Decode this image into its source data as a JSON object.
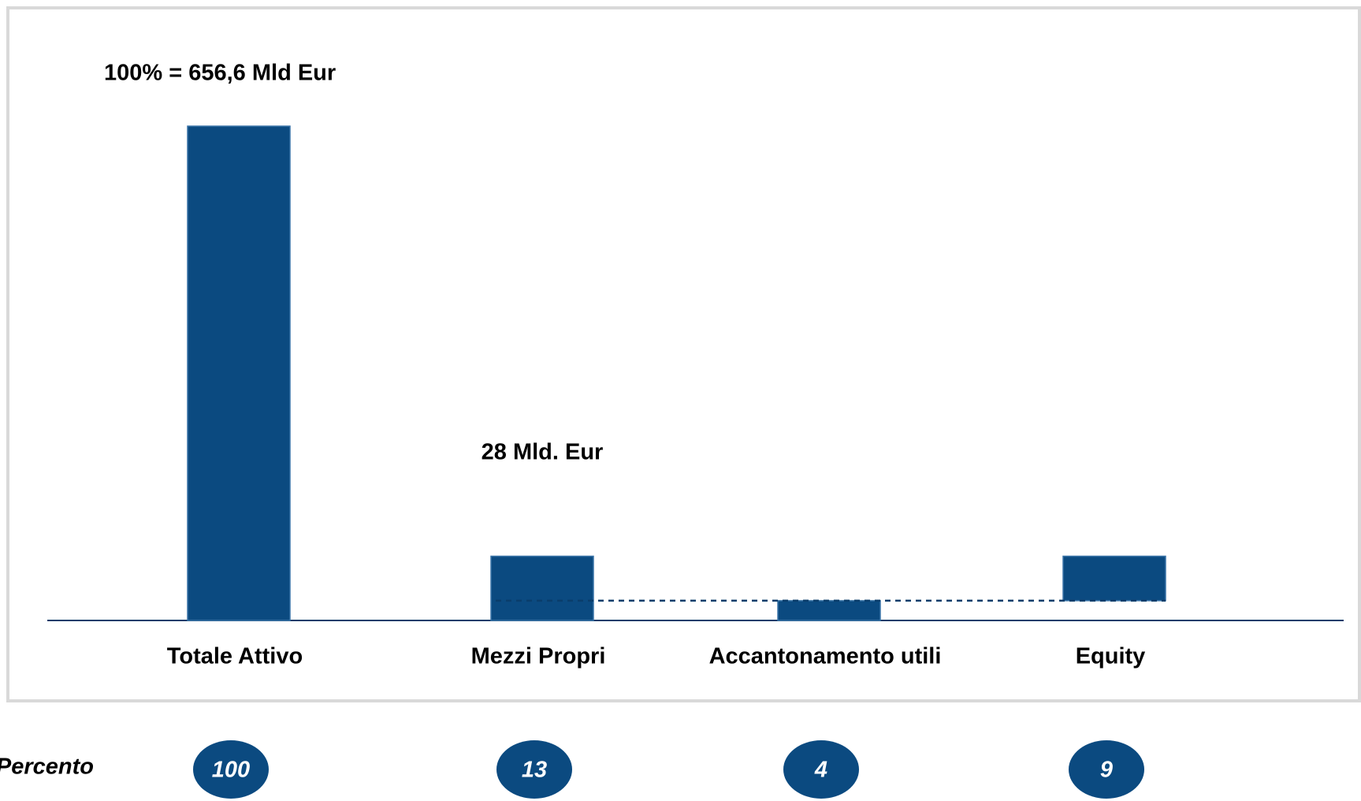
{
  "chart_data": {
    "type": "waterfall",
    "annotations": [
      "100% = 656,6 Mld Eur",
      "28 Mld. Eur"
    ],
    "row_label": "Percento",
    "categories": [
      "Totale Attivo",
      "Mezzi Propri",
      "Accantonamento utili",
      "Equity"
    ],
    "values": [
      100,
      13,
      4,
      9
    ],
    "color": "#0b4a80"
  }
}
